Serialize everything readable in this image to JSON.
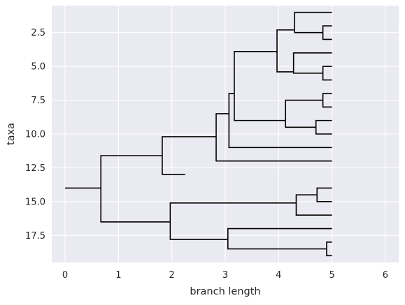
{
  "chart_data": {
    "type": "dendrogram",
    "xlabel": "branch length",
    "ylabel": "taxa",
    "xlim": [
      -0.25,
      6.25
    ],
    "ylim_top": 0.5,
    "ylim_bottom": 19.5,
    "y_inverted": true,
    "grid": true,
    "background_color": "#eaeaf2",
    "grid_color": "#ffffff",
    "line_color": "#000000",
    "xticks": [
      {
        "value": 0,
        "label": "0"
      },
      {
        "value": 1,
        "label": "1"
      },
      {
        "value": 2,
        "label": "2"
      },
      {
        "value": 3,
        "label": "3"
      },
      {
        "value": 4,
        "label": "4"
      },
      {
        "value": 5,
        "label": "5"
      },
      {
        "value": 6,
        "label": "6"
      }
    ],
    "yticks": [
      {
        "value": 2.5,
        "label": "2.5"
      },
      {
        "value": 5.0,
        "label": "5.0"
      },
      {
        "value": 7.5,
        "label": "7.5"
      },
      {
        "value": 10.0,
        "label": "10.0"
      },
      {
        "value": 12.5,
        "label": "12.5"
      },
      {
        "value": 15.0,
        "label": "15.0"
      },
      {
        "value": 17.5,
        "label": "17.5"
      }
    ],
    "root_stem": {
      "x0": 0.0,
      "x1": 0.67,
      "y": 14.0
    },
    "edges": [
      {
        "x0": 0.67,
        "x1": 1.82,
        "y_start": 14.0,
        "y_end": 11.6
      },
      {
        "x0": 0.67,
        "x1": 1.97,
        "y_start": 14.0,
        "y_end": 16.5
      },
      {
        "x0": 1.82,
        "x1": 2.83,
        "y_start": 11.6,
        "y_end": 10.2
      },
      {
        "x0": 1.82,
        "x1": 2.25,
        "y_start": 11.6,
        "y_end": 13.0
      },
      {
        "x0": 2.83,
        "x1": 3.07,
        "y_start": 10.2,
        "y_end": 8.5
      },
      {
        "x0": 2.83,
        "x1": 5.0,
        "y_start": 10.2,
        "y_end": 12.0
      },
      {
        "x0": 3.07,
        "x1": 3.17,
        "y_start": 8.5,
        "y_end": 7.0
      },
      {
        "x0": 3.07,
        "x1": 5.0,
        "y_start": 8.5,
        "y_end": 11.0
      },
      {
        "x0": 3.17,
        "x1": 3.97,
        "y_start": 7.0,
        "y_end": 3.9
      },
      {
        "x0": 3.17,
        "x1": 4.13,
        "y_start": 7.0,
        "y_end": 9.0
      },
      {
        "x0": 3.97,
        "x1": 4.3,
        "y_start": 3.9,
        "y_end": 2.3
      },
      {
        "x0": 3.97,
        "x1": 4.28,
        "y_start": 3.9,
        "y_end": 5.4
      },
      {
        "x0": 4.3,
        "x1": 5.0,
        "y_start": 2.3,
        "y_end": 1.0
      },
      {
        "x0": 4.3,
        "x1": 4.83,
        "y_start": 2.3,
        "y_end": 2.5
      },
      {
        "x0": 4.83,
        "x1": 5.0,
        "y_start": 2.5,
        "y_end": 2.0
      },
      {
        "x0": 4.83,
        "x1": 5.0,
        "y_start": 2.5,
        "y_end": 3.0
      },
      {
        "x0": 4.28,
        "x1": 5.0,
        "y_start": 5.4,
        "y_end": 4.0
      },
      {
        "x0": 4.28,
        "x1": 4.83,
        "y_start": 5.4,
        "y_end": 5.5
      },
      {
        "x0": 4.83,
        "x1": 5.0,
        "y_start": 5.5,
        "y_end": 5.0
      },
      {
        "x0": 4.83,
        "x1": 5.0,
        "y_start": 5.5,
        "y_end": 6.0
      },
      {
        "x0": 4.13,
        "x1": 4.83,
        "y_start": 9.0,
        "y_end": 7.5
      },
      {
        "x0": 4.13,
        "x1": 4.7,
        "y_start": 9.0,
        "y_end": 9.5
      },
      {
        "x0": 4.83,
        "x1": 5.0,
        "y_start": 7.5,
        "y_end": 7.0
      },
      {
        "x0": 4.83,
        "x1": 5.0,
        "y_start": 7.5,
        "y_end": 8.0
      },
      {
        "x0": 4.7,
        "x1": 5.0,
        "y_start": 9.5,
        "y_end": 9.0
      },
      {
        "x0": 4.7,
        "x1": 5.0,
        "y_start": 9.5,
        "y_end": 10.0
      },
      {
        "x0": 1.97,
        "x1": 4.33,
        "y_start": 16.5,
        "y_end": 15.1
      },
      {
        "x0": 1.97,
        "x1": 3.05,
        "y_start": 16.5,
        "y_end": 17.8
      },
      {
        "x0": 4.33,
        "x1": 4.72,
        "y_start": 15.1,
        "y_end": 14.5
      },
      {
        "x0": 4.33,
        "x1": 5.0,
        "y_start": 15.1,
        "y_end": 16.0
      },
      {
        "x0": 4.72,
        "x1": 5.0,
        "y_start": 14.5,
        "y_end": 14.0
      },
      {
        "x0": 4.72,
        "x1": 5.0,
        "y_start": 14.5,
        "y_end": 15.0
      },
      {
        "x0": 3.05,
        "x1": 5.0,
        "y_start": 17.8,
        "y_end": 17.0
      },
      {
        "x0": 3.05,
        "x1": 4.9,
        "y_start": 17.8,
        "y_end": 18.5
      },
      {
        "x0": 4.9,
        "x1": 5.0,
        "y_start": 18.5,
        "y_end": 18.0
      },
      {
        "x0": 4.9,
        "x1": 5.0,
        "y_start": 18.5,
        "y_end": 19.0
      }
    ]
  }
}
